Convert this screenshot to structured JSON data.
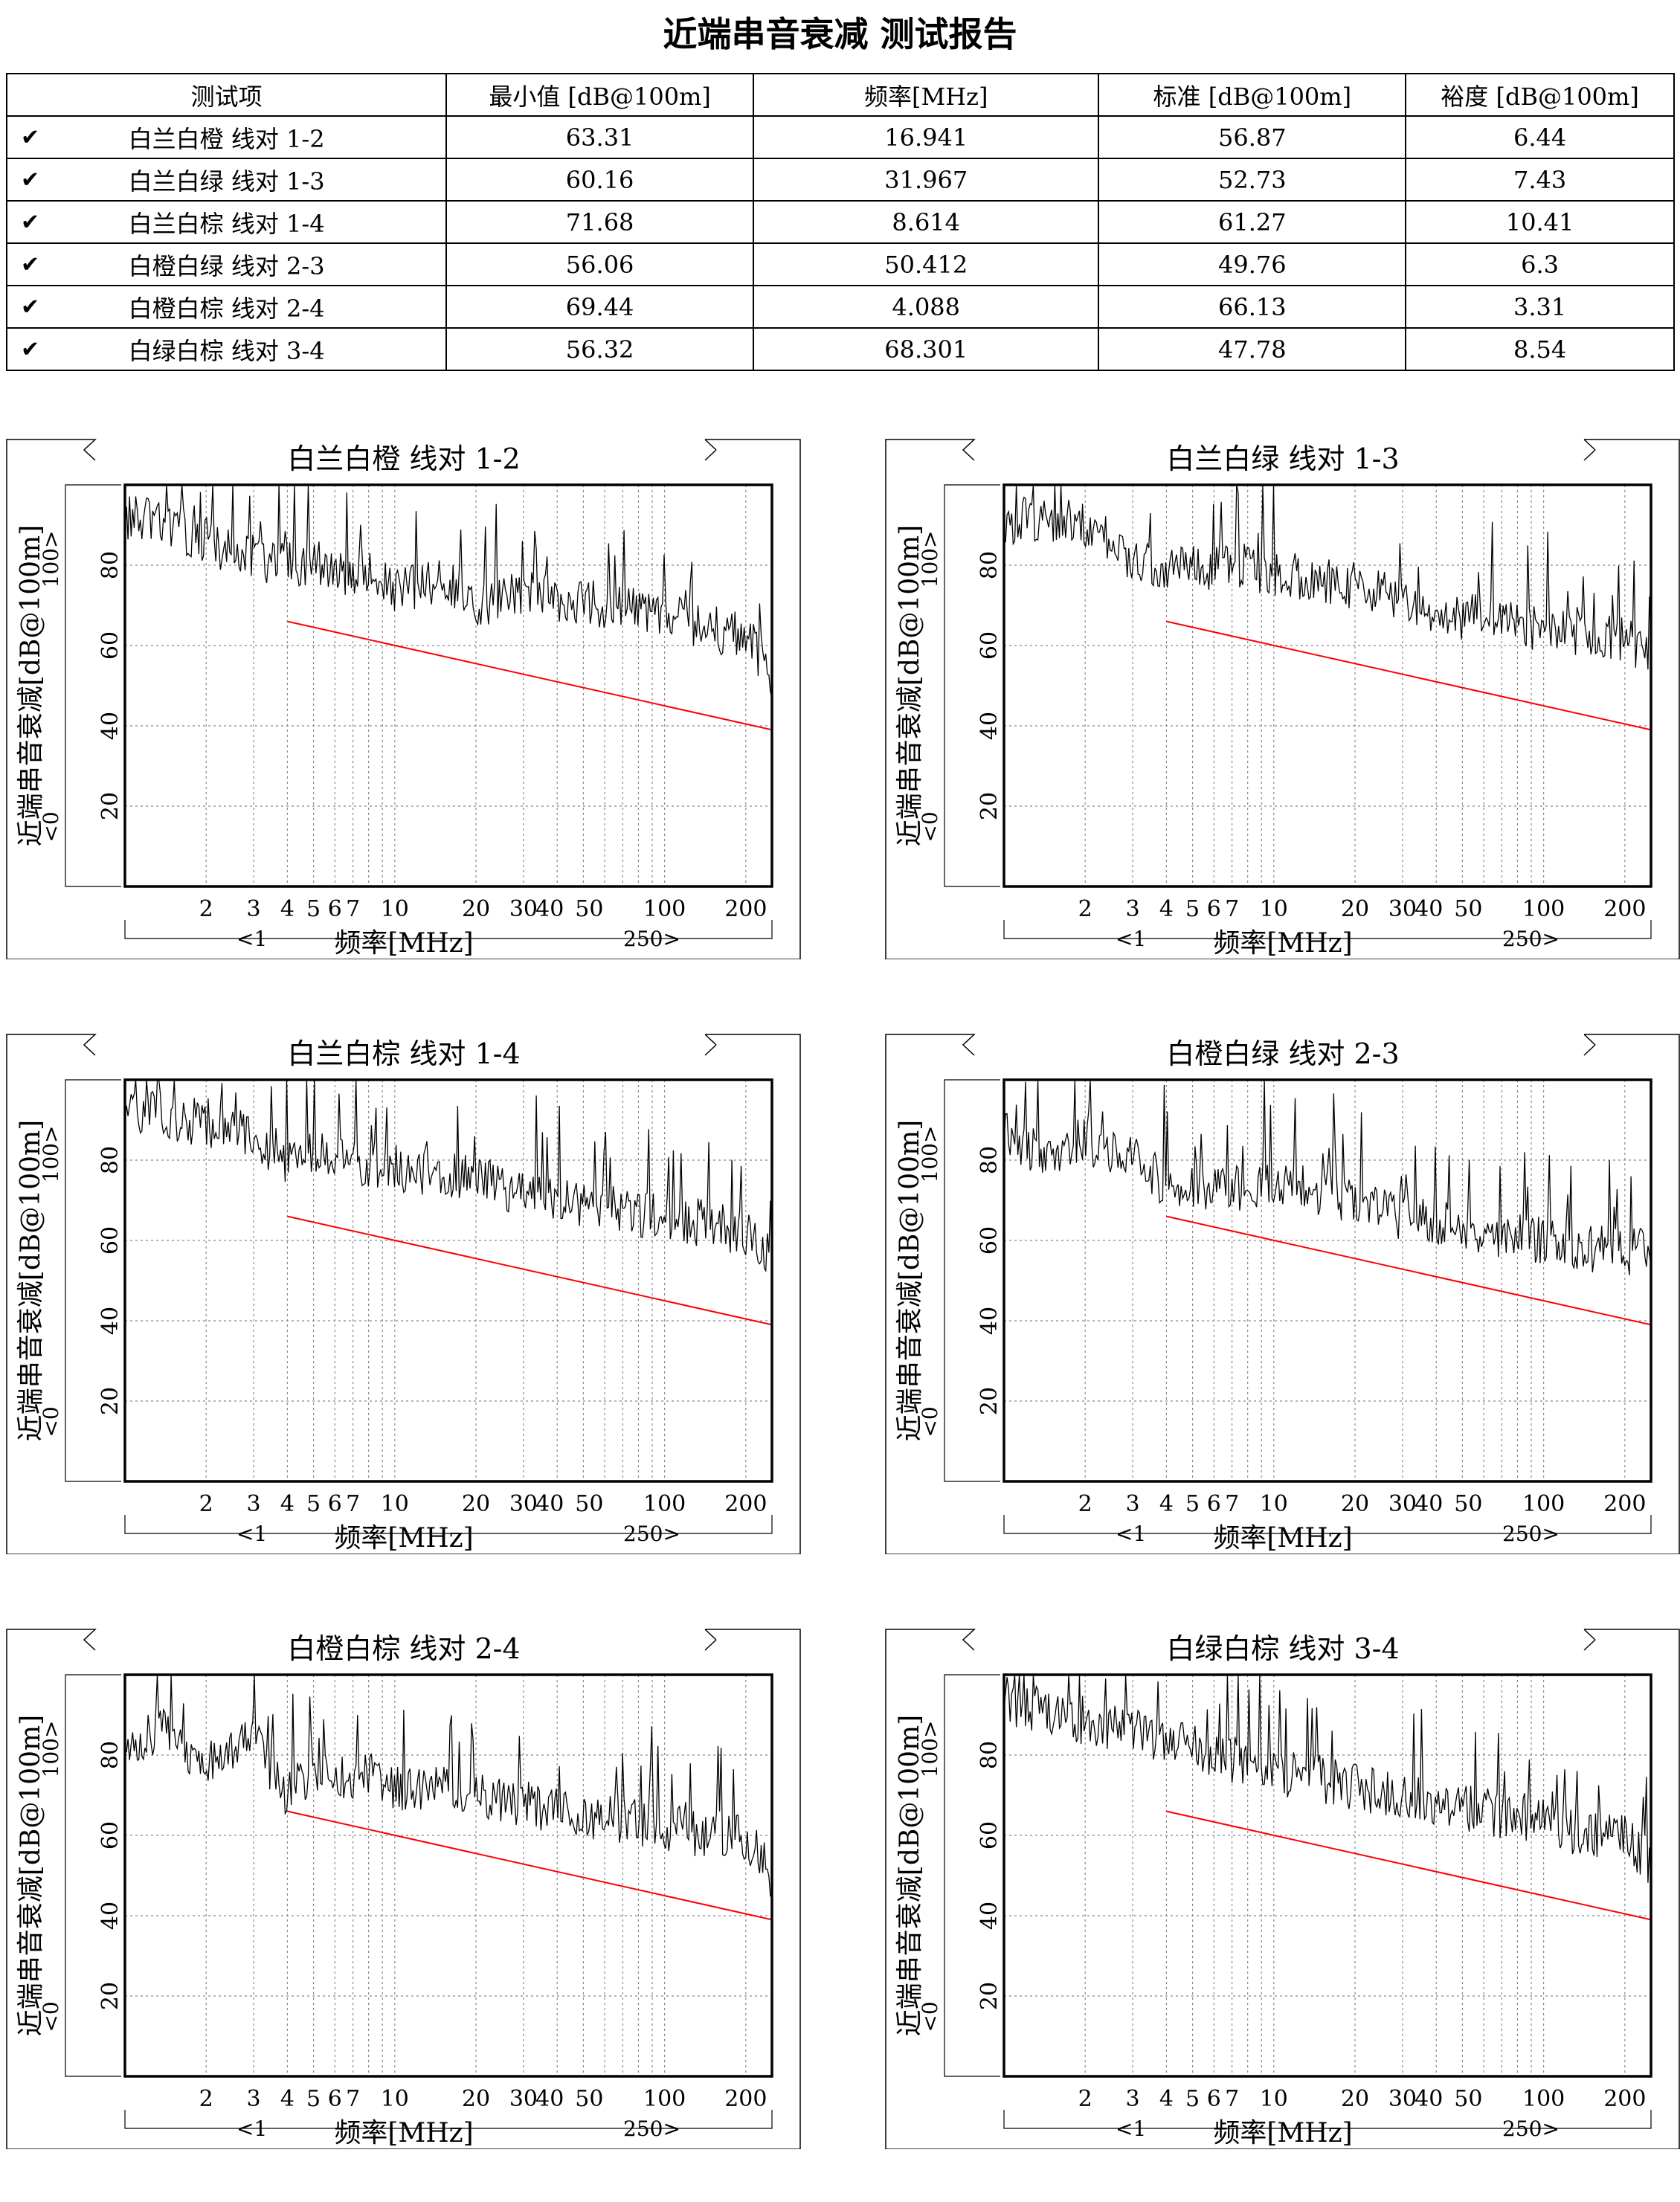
{
  "title": "近端串音衰减 测试报告",
  "table": {
    "headers": [
      "测试项",
      "最小值 [dB@100m]",
      "频率[MHz]",
      "标准 [dB@100m]",
      "裕度 [dB@100m]"
    ],
    "rows": [
      {
        "name": "白兰白橙 线对 1-2",
        "min": "63.31",
        "freq": "16.941",
        "std": "56.87",
        "margin": "6.44"
      },
      {
        "name": "白兰白绿 线对 1-3",
        "min": "60.16",
        "freq": "31.967",
        "std": "52.73",
        "margin": "7.43"
      },
      {
        "name": "白兰白棕 线对 1-4",
        "min": "71.68",
        "freq": "8.614",
        "std": "61.27",
        "margin": "10.41"
      },
      {
        "name": "白橙白绿 线对 2-3",
        "min": "56.06",
        "freq": "50.412",
        "std": "49.76",
        "margin": "6.3"
      },
      {
        "name": "白橙白棕 线对 2-4",
        "min": "69.44",
        "freq": "4.088",
        "std": "66.13",
        "margin": "3.31"
      },
      {
        "name": "白绿白棕 线对 3-4",
        "min": "56.32",
        "freq": "68.301",
        "std": "47.78",
        "margin": "8.54"
      }
    ]
  },
  "chart_common": {
    "ylabel": "近端串音衰减[dB@100m]",
    "xlabel": "频率[MHz]",
    "ytick_labels": [
      "20",
      "40",
      "60",
      "80"
    ],
    "xtick_labels": [
      "2",
      "3",
      "4",
      "5",
      "6",
      "7",
      "10",
      "20",
      "30",
      "40",
      "50",
      "100",
      "200"
    ],
    "ylim_label_low": "<0",
    "ylim_label_high": "100>",
    "xlim_label_low": "<1",
    "xlim_label_high": "250>",
    "colors": {
      "trace": "#000000",
      "limit": "#ff0000",
      "grid": "#888888"
    }
  },
  "chart_data": [
    {
      "type": "line",
      "title": "白兰白橙 线对 1-2",
      "xscale": "log",
      "xlim": [
        1,
        250
      ],
      "ylim": [
        0,
        100
      ],
      "series": [
        {
          "x": [
            1,
            1.4,
            2,
            3,
            4,
            5,
            6,
            8,
            10,
            15,
            20,
            30,
            40,
            60,
            100,
            150,
            200,
            250
          ],
          "values": [
            92,
            90,
            86,
            82,
            80,
            81,
            78,
            78,
            73,
            77,
            70,
            73,
            72,
            70,
            67,
            64,
            62,
            53
          ]
        },
        {
          "x": [
            4,
            250
          ],
          "values": [
            66,
            39
          ]
        }
      ]
    },
    {
      "type": "line",
      "title": "白兰白绿 线对 1-3",
      "xscale": "log",
      "xlim": [
        1,
        250
      ],
      "ylim": [
        0,
        100
      ],
      "series": [
        {
          "x": [
            1,
            1.4,
            2,
            3,
            4,
            5,
            6,
            8,
            10,
            15,
            20,
            30,
            40,
            60,
            100,
            150,
            200,
            250
          ],
          "values": [
            90,
            92,
            90,
            82,
            79,
            79,
            80,
            80,
            78,
            76,
            75,
            72,
            66,
            68,
            64,
            63,
            62,
            57
          ]
        },
        {
          "x": [
            4,
            250
          ],
          "values": [
            66,
            39
          ]
        }
      ]
    },
    {
      "type": "line",
      "title": "白兰白棕 线对 1-4",
      "xscale": "log",
      "xlim": [
        1,
        250
      ],
      "ylim": [
        0,
        100
      ],
      "series": [
        {
          "x": [
            1,
            1.4,
            2,
            3,
            4,
            5,
            6,
            8,
            10,
            15,
            20,
            30,
            40,
            60,
            100,
            150,
            200,
            250
          ],
          "values": [
            93,
            91,
            89,
            86,
            80,
            83,
            81,
            79,
            78,
            77,
            75,
            72,
            70,
            68,
            66,
            64,
            62,
            57
          ]
        },
        {
          "x": [
            4,
            250
          ],
          "values": [
            66,
            39
          ]
        }
      ]
    },
    {
      "type": "line",
      "title": "白橙白绿 线对 2-3",
      "xscale": "log",
      "xlim": [
        1,
        250
      ],
      "ylim": [
        0,
        100
      ],
      "series": [
        {
          "x": [
            1,
            1.4,
            2,
            3,
            4,
            5,
            6,
            8,
            10,
            15,
            20,
            30,
            40,
            60,
            100,
            150,
            200,
            250
          ],
          "values": [
            86,
            82,
            85,
            80,
            74,
            74,
            72,
            73,
            74,
            72,
            70,
            66,
            65,
            62,
            60,
            58,
            57,
            57
          ]
        },
        {
          "x": [
            4,
            250
          ],
          "values": [
            66,
            39
          ]
        }
      ]
    },
    {
      "type": "line",
      "title": "白橙白棕 线对 2-4",
      "xscale": "log",
      "xlim": [
        1,
        250
      ],
      "ylim": [
        0,
        100
      ],
      "series": [
        {
          "x": [
            1,
            1.4,
            2,
            3,
            4,
            5,
            6,
            8,
            10,
            15,
            20,
            30,
            40,
            60,
            100,
            150,
            200,
            250
          ],
          "values": [
            82,
            86,
            78,
            84,
            70,
            76,
            74,
            76,
            72,
            72,
            70,
            68,
            66,
            64,
            62,
            60,
            60,
            50
          ]
        },
        {
          "x": [
            4,
            250
          ],
          "values": [
            66,
            39
          ]
        }
      ]
    },
    {
      "type": "line",
      "title": "白绿白棕 线对 3-4",
      "xscale": "log",
      "xlim": [
        1,
        250
      ],
      "ylim": [
        0,
        100
      ],
      "series": [
        {
          "x": [
            1,
            1.4,
            2,
            3,
            4,
            5,
            6,
            8,
            10,
            15,
            20,
            30,
            40,
            60,
            100,
            150,
            200,
            250
          ],
          "values": [
            92,
            92,
            88,
            86,
            84,
            82,
            80,
            78,
            76,
            74,
            72,
            70,
            68,
            66,
            63,
            60,
            60,
            53
          ]
        },
        {
          "x": [
            4,
            250
          ],
          "values": [
            66,
            39
          ]
        }
      ]
    }
  ]
}
